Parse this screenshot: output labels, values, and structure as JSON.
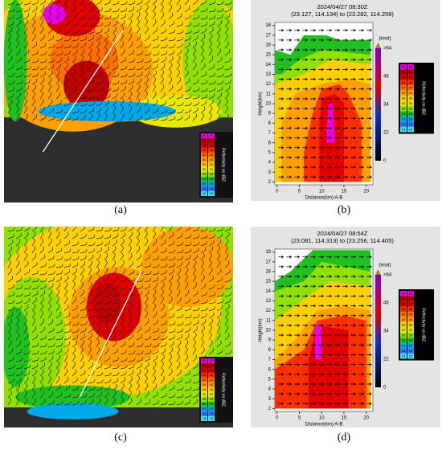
{
  "panels": [
    {
      "label": "(a)",
      "type": "ppi",
      "colorbar": {
        "title": "Reflectivity on dBZ",
        "ticks": [
          60,
          56,
          52,
          48,
          44,
          40,
          36,
          32,
          28,
          24,
          20,
          18,
          15
        ],
        "colors": [
          "#e800e8",
          "#c00000",
          "#e00000",
          "#ff3000",
          "#ff7000",
          "#ffa000",
          "#ffd000",
          "#e8e800",
          "#90e000",
          "#20c020",
          "#00a8e8",
          "#3080ff",
          "#40e0ff"
        ]
      }
    },
    {
      "label": "(b)",
      "type": "cross-section",
      "title": "2024/04/27 08:30Z",
      "subtitle": "(23.127, 114.134) to (23.282, 114.258)",
      "xlabel": "Distance(km) A-B",
      "ylabel": "Height(km)",
      "xticks": [
        0,
        5,
        10,
        15,
        20
      ],
      "yticks": [
        2,
        3,
        4,
        5,
        6,
        7,
        8,
        9,
        10,
        11,
        12,
        13,
        14,
        15,
        16,
        17,
        18
      ],
      "xlim": [
        -0.5,
        21.5
      ],
      "ylim": [
        1.7,
        18.3
      ],
      "wind_label": "(knot)",
      "wind_ticks": [
        ">64",
        "48",
        "34",
        "22",
        "0"
      ],
      "colorbar": {
        "title": "Reflectivity on dBZ",
        "ticks": [
          60,
          56,
          52,
          48,
          44,
          40,
          36,
          32,
          28,
          24,
          20,
          18,
          15
        ],
        "colors": [
          "#e800e8",
          "#c00000",
          "#e00000",
          "#ff3000",
          "#ff7000",
          "#ffa000",
          "#ffd000",
          "#e8e800",
          "#90e000",
          "#20c020",
          "#00a8e8",
          "#3080ff",
          "#40e0ff"
        ]
      }
    },
    {
      "label": "(c)",
      "type": "ppi",
      "colorbar": {
        "title": "Reflectivity on dBZ",
        "ticks": [
          60,
          56,
          52,
          48,
          44,
          40,
          36,
          32,
          28,
          24,
          20,
          18,
          15
        ],
        "colors": [
          "#e800e8",
          "#c00000",
          "#e00000",
          "#ff3000",
          "#ff7000",
          "#ffa000",
          "#ffd000",
          "#e8e800",
          "#90e000",
          "#20c020",
          "#00a8e8",
          "#3080ff",
          "#40e0ff"
        ]
      }
    },
    {
      "label": "(d)",
      "type": "cross-section",
      "title": "2024/04/27 08:54Z",
      "subtitle": "(23.081, 114.313) to (23.256, 114.405)",
      "xlabel": "Distance(km) A-B",
      "ylabel": "Height(km)",
      "xticks": [
        0,
        5,
        10,
        15,
        20
      ],
      "yticks": [
        2,
        3,
        4,
        5,
        6,
        7,
        8,
        9,
        10,
        11,
        12,
        13,
        14,
        15,
        16,
        17,
        18
      ],
      "xlim": [
        -0.5,
        21.5
      ],
      "ylim": [
        1.7,
        18.3
      ],
      "wind_label": "(knot)",
      "wind_ticks": [
        ">64",
        "48",
        "34",
        "22",
        "0"
      ],
      "colorbar": {
        "title": "Reflectivity on dBZ",
        "ticks": [
          60,
          56,
          52,
          48,
          44,
          40,
          36,
          32,
          28,
          24,
          20,
          18,
          15
        ],
        "colors": [
          "#e800e8",
          "#c00000",
          "#e00000",
          "#ff3000",
          "#ff7000",
          "#ffa000",
          "#ffd000",
          "#e8e800",
          "#90e000",
          "#20c020",
          "#00a8e8",
          "#3080ff",
          "#40e0ff"
        ]
      }
    }
  ]
}
